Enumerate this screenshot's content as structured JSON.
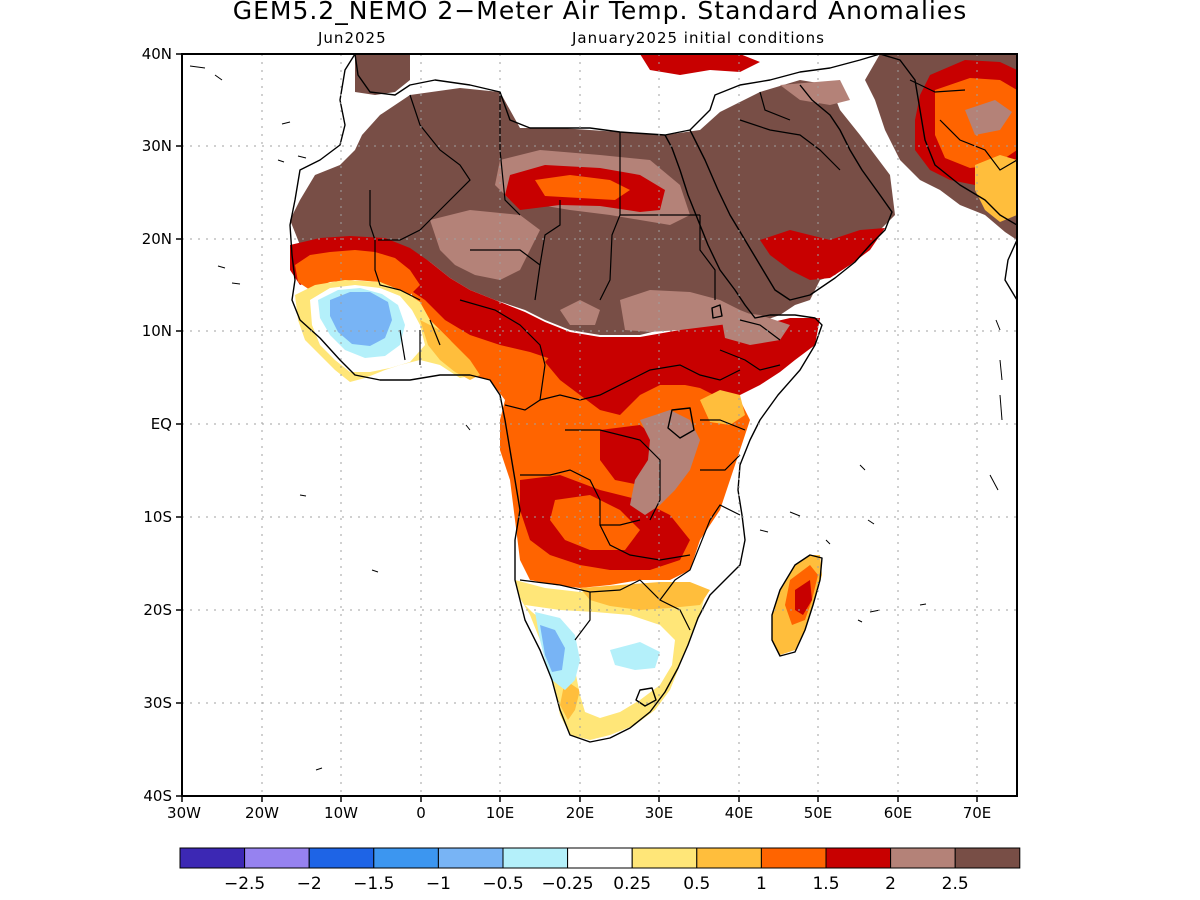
{
  "title": "GEM5.2_NEMO 2−Meter Air Temp. Standard Anomalies",
  "subtitle_left": "Jun2025",
  "subtitle_right": "January2025 initial conditions",
  "lat_labels": [
    "40N",
    "30N",
    "20N",
    "10N",
    "EQ",
    "10S",
    "20S",
    "30S",
    "40S"
  ],
  "lon_labels": [
    "30W",
    "20W",
    "10W",
    "0",
    "10E",
    "20E",
    "30E",
    "40E",
    "50E",
    "60E",
    "70E"
  ],
  "colorbar": {
    "colors": [
      "#3c28b4",
      "#9682f0",
      "#1e64e6",
      "#3c96f0",
      "#78b4f5",
      "#b4f0fa",
      "#ffffff",
      "#ffe678",
      "#ffbe3c",
      "#ff6400",
      "#c80000",
      "#b48278",
      "#784e46"
    ],
    "labels": [
      "−2.5",
      "−2",
      "−1.5",
      "−1",
      "−0.5",
      "−0.25",
      "0.25",
      "0.5",
      "1",
      "1.5",
      "2",
      "2.5"
    ]
  },
  "land_outline_color": "#000000",
  "grid": "dotted"
}
